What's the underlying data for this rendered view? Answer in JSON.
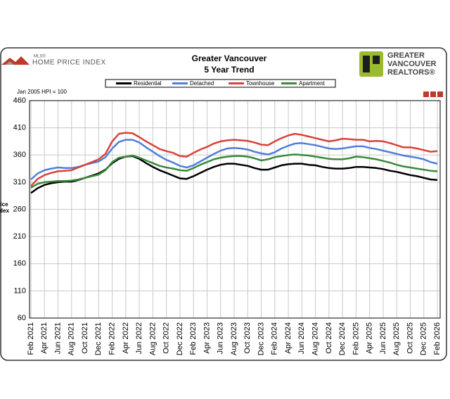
{
  "header": {
    "logo_small": "MLS®",
    "logo_text": "HOME PRICE INDEX",
    "brand": [
      "GREATER",
      "VANCOUVER",
      "REALTORS®"
    ]
  },
  "chart_data": {
    "type": "line",
    "title": "Greater Vancouver",
    "subtitle": "5 Year Trend",
    "note": "Jan 2005 HPI = 100",
    "y_label": [
      "Price",
      "Index"
    ],
    "categories": [
      "Feb 2021",
      null,
      "Apr 2021",
      null,
      "Jun 2021",
      null,
      "Aug 2021",
      null,
      "Oct 2021",
      null,
      "Dec 2021",
      null,
      "Feb 2022",
      null,
      "Apr 2022",
      null,
      "Jun 2022",
      null,
      "Aug 2022",
      null,
      "Oct 2022",
      null,
      "Dec 2022",
      null,
      "Feb 2023",
      null,
      "Apr 2023",
      null,
      "Jun 2023",
      null,
      "Aug 2023",
      null,
      "Oct 2023",
      null,
      "Dec 2023",
      null,
      "Feb 2024",
      null,
      "Apr 2024",
      null,
      "Jun 2024",
      null,
      "Aug 2024",
      null,
      "Oct 2024",
      null,
      "Dec 2024",
      null,
      "Feb 2025",
      null,
      "Apr 2025",
      null,
      "Jun 2025",
      null,
      "Aug 2025",
      null,
      "Oct 2025",
      null,
      "Dec 2025",
      null,
      "Feb 2026"
    ],
    "series": [
      {
        "name": "Residential",
        "color": "#000000",
        "values": [
          290,
          299,
          305,
          308,
          310,
          311,
          311,
          314,
          318,
          322,
          326,
          333,
          345,
          353,
          357,
          358,
          353,
          345,
          338,
          332,
          327,
          322,
          317,
          316,
          321,
          327,
          333,
          338,
          342,
          344,
          344,
          342,
          340,
          336,
          333,
          333,
          337,
          341,
          343,
          344,
          344,
          342,
          341,
          338,
          336,
          335,
          335,
          336,
          338,
          338,
          337,
          336,
          334,
          331,
          329,
          326,
          323,
          321,
          318,
          315,
          314
        ]
      },
      {
        "name": "Detached",
        "color": "#4f7fd9",
        "values": [
          315,
          326,
          332,
          335,
          337,
          336,
          336,
          338,
          342,
          345,
          348,
          356,
          372,
          384,
          388,
          388,
          383,
          374,
          366,
          358,
          351,
          346,
          340,
          337,
          341,
          348,
          355,
          362,
          368,
          372,
          373,
          372,
          370,
          366,
          363,
          361,
          365,
          372,
          377,
          381,
          382,
          380,
          378,
          375,
          372,
          371,
          372,
          374,
          376,
          376,
          373,
          371,
          368,
          365,
          362,
          359,
          357,
          355,
          352,
          347,
          344
        ]
      },
      {
        "name": "Townhouse",
        "color": "#d9423a",
        "values": [
          303,
          316,
          323,
          327,
          330,
          331,
          332,
          337,
          342,
          347,
          352,
          362,
          385,
          399,
          401,
          400,
          393,
          385,
          378,
          371,
          367,
          364,
          358,
          357,
          364,
          370,
          375,
          381,
          385,
          387,
          388,
          387,
          386,
          383,
          379,
          378,
          385,
          391,
          396,
          399,
          397,
          394,
          391,
          388,
          385,
          387,
          390,
          389,
          388,
          388,
          385,
          386,
          385,
          382,
          378,
          374,
          374,
          372,
          369,
          366,
          367
        ]
      },
      {
        "name": "Apartment",
        "color": "#3a8a3a",
        "values": [
          300,
          307,
          310,
          311,
          312,
          312,
          313,
          315,
          318,
          321,
          324,
          332,
          347,
          355,
          357,
          359,
          355,
          350,
          345,
          340,
          337,
          335,
          332,
          331,
          336,
          342,
          347,
          352,
          355,
          357,
          358,
          358,
          357,
          354,
          350,
          352,
          356,
          358,
          360,
          361,
          360,
          359,
          357,
          355,
          353,
          352,
          352,
          354,
          357,
          356,
          354,
          352,
          349,
          346,
          342,
          339,
          337,
          335,
          333,
          331,
          330
        ]
      }
    ],
    "ylim": [
      60,
      460
    ],
    "yticks": [
      60,
      110,
      160,
      210,
      260,
      310,
      360,
      410,
      460
    ],
    "grid": true
  }
}
